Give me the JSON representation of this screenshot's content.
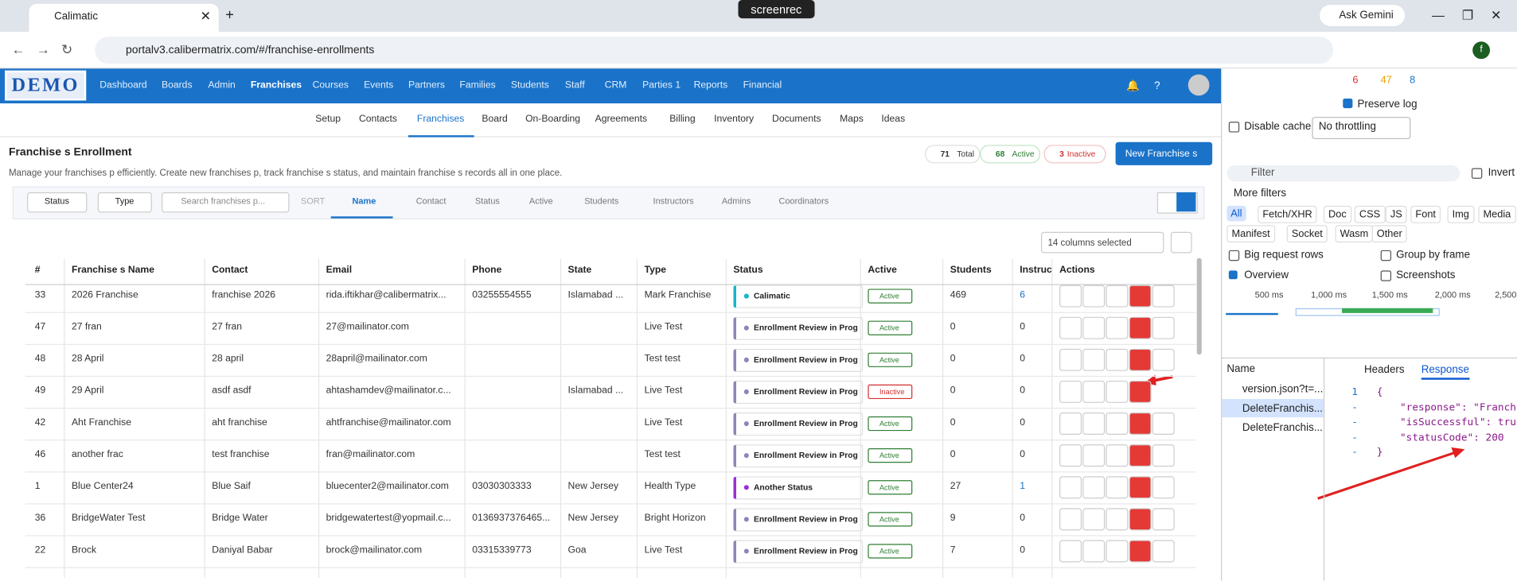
{
  "browser": {
    "tab_title": "Calimatic",
    "recording_badge": "screenrec",
    "url": "portalv3.calibermatrix.com/#/franchise-enrollments",
    "gemini": "Ask Gemini",
    "profile": "f"
  },
  "app": {
    "logo": "DEMO",
    "nav": [
      "Dashboard",
      "Boards",
      "Admin",
      "Franchises",
      "Courses",
      "Events",
      "Partners",
      "Families",
      "Students",
      "Staff",
      "CRM",
      "Parties 1",
      "Reports",
      "Financial"
    ],
    "nav_active": 3,
    "subnav": [
      "Setup",
      "Contacts",
      "Franchises",
      "Board",
      "On-Boarding",
      "Agreements",
      "Billing",
      "Inventory",
      "Documents",
      "Maps",
      "Ideas"
    ],
    "subnav_active": 2
  },
  "page": {
    "title": "Franchise s Enrollment",
    "description": "Manage your franchises p efficiently. Create new franchises p, track franchise s status, and maintain franchise s records all in one place.",
    "stats": [
      {
        "value": "71",
        "label": "Total"
      },
      {
        "value": "68",
        "label": "Active"
      },
      {
        "value": "3",
        "label": "Inactive"
      }
    ],
    "new_button": "New Franchise s"
  },
  "filters": {
    "status": "Status",
    "type": "Type",
    "search_placeholder": "Search franchises p...",
    "sort_label": "SORT",
    "sort_options": [
      "Name",
      "Contact",
      "Status",
      "Active",
      "Students",
      "Instructors",
      "Admins",
      "Coordinators"
    ],
    "columns_selected": "14 columns selected"
  },
  "table": {
    "columns": [
      "#",
      "Franchise s Name",
      "Contact",
      "Email",
      "Phone",
      "State",
      "Type",
      "Status",
      "Active",
      "Students",
      "Instruc",
      "Actions"
    ],
    "rows": [
      {
        "id": "33",
        "name": "2026 Franchise",
        "contact": "franchise 2026",
        "email": "rida.iftikhar@calibermatrix...",
        "phone": "03255554555",
        "state": "Islamabad ...",
        "type": "Mark Franchise",
        "status": "Calimatic",
        "status_color": "#17b6c9",
        "active": "Active",
        "students": "469",
        "instructors": "6"
      },
      {
        "id": "47",
        "name": "27 fran",
        "contact": "27 fran",
        "email": "27@mailinator.com",
        "phone": null,
        "state": null,
        "type": "Live Test",
        "status": "Enrollment Review in Progre",
        "status_color": "#8c86b8",
        "active": "Active",
        "students": "0",
        "instructors": "0"
      },
      {
        "id": "48",
        "name": "28 April",
        "contact": "28 april",
        "email": "28april@mailinator.com",
        "phone": null,
        "state": null,
        "type": "Test test",
        "status": "Enrollment Review in Progre",
        "status_color": "#8c86b8",
        "active": "Active",
        "students": "0",
        "instructors": "0"
      },
      {
        "id": "49",
        "name": "29 April",
        "contact": "asdf asdf",
        "email": "ahtashamdev@mailinator.c...",
        "phone": null,
        "state": "Islamabad ...",
        "type": "Live Test",
        "status": "Enrollment Review in Progre",
        "status_color": "#8c86b8",
        "active": "Inactive",
        "students": "0",
        "instructors": "0"
      },
      {
        "id": "42",
        "name": "Aht Franchise",
        "contact": "aht franchise",
        "email": "ahtfranchise@mailinator.com",
        "phone": null,
        "state": null,
        "type": "Live Test",
        "status": "Enrollment Review in Progre",
        "status_color": "#8c86b8",
        "active": "Active",
        "students": "0",
        "instructors": "0"
      },
      {
        "id": "46",
        "name": "another frac",
        "contact": "test franchise",
        "email": "fran@mailinator.com",
        "phone": null,
        "state": null,
        "type": "Test test",
        "status": "Enrollment Review in Progre",
        "status_color": "#8c86b8",
        "active": "Active",
        "students": "0",
        "instructors": "0"
      },
      {
        "id": "1",
        "name": "Blue Center24",
        "contact": "Blue Saif",
        "email": "bluecenter2@mailinator.com",
        "phone": "03030303333",
        "state": "New Jersey",
        "type": "Health Type",
        "status": "Another Status",
        "status_color": "#9b2fd6",
        "active": "Active",
        "students": "27",
        "instructors": "1"
      },
      {
        "id": "36",
        "name": "BridgeWater Test",
        "contact": "Bridge Water",
        "email": "bridgewatertest@yopmail.c...",
        "phone": "0136937376465...",
        "state": "New Jersey",
        "type": "Bright Horizon",
        "status": "Enrollment Review in Progre",
        "status_color": "#8c86b8",
        "active": "Active",
        "students": "9",
        "instructors": "0"
      },
      {
        "id": "22",
        "name": "Brock",
        "contact": "Daniyal Babar",
        "email": "brock@mailinator.com",
        "phone": "03315339773",
        "state": "Goa",
        "type": "Live Test",
        "status": "Enrollment Review in Progre",
        "status_color": "#8c86b8",
        "active": "Active",
        "students": "7",
        "instructors": "0"
      }
    ]
  },
  "devtools": {
    "errors": "6",
    "warnings": "47",
    "info": "8",
    "preserve_log": "Preserve log",
    "disable_cache": "Disable cache",
    "throttling": "No throttling",
    "filter": "Filter",
    "invert": "Invert",
    "more_filters": "More filters",
    "types": [
      "All",
      "Fetch/XHR",
      "Doc",
      "CSS",
      "JS",
      "Font",
      "Img",
      "Media",
      "Manifest",
      "Socket",
      "Wasm",
      "Other"
    ],
    "options": [
      "Big request rows",
      "Group by frame",
      "Overview",
      "Screenshots"
    ],
    "timeline": [
      "500 ms",
      "1,000 ms",
      "1,500 ms",
      "2,000 ms",
      "2,500"
    ],
    "name_header": "Name",
    "tabs": [
      "Headers",
      "Response"
    ],
    "requests": [
      "version.json?t=...",
      "DeleteFranchis...",
      "DeleteFranchis..."
    ],
    "response_lines": [
      {
        "num": "1",
        "text": "{"
      },
      {
        "num": "-",
        "text": "\"response\": \"Franchi"
      },
      {
        "num": "-",
        "text": "\"isSuccessful\": true"
      },
      {
        "num": "-",
        "text": "\"statusCode\": 200"
      },
      {
        "num": "-",
        "text": "}"
      }
    ]
  }
}
